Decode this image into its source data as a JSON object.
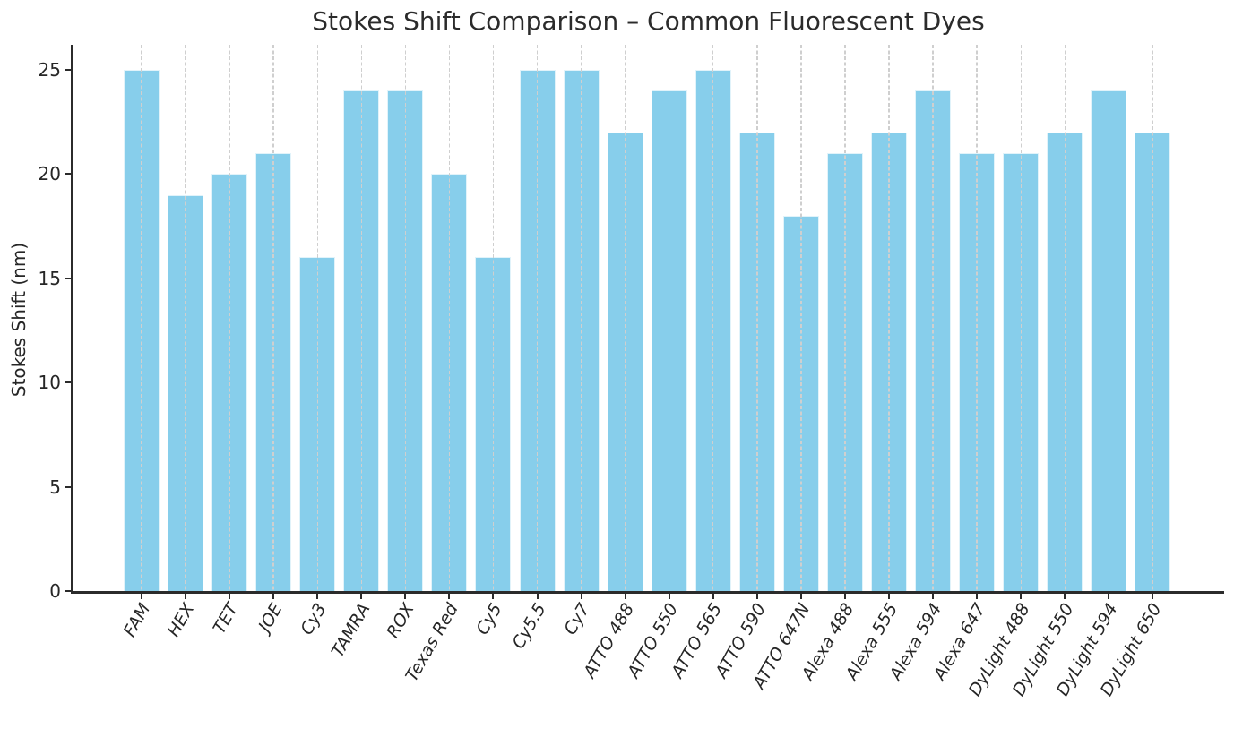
{
  "chart_data": {
    "type": "bar",
    "title": "Stokes Shift Comparison – Common Fluorescent Dyes",
    "xlabel": "",
    "ylabel": "Stokes Shift (nm)",
    "categories": [
      "FAM",
      "HEX",
      "TET",
      "JOE",
      "Cy3",
      "TAMRA",
      "ROX",
      "Texas Red",
      "Cy5",
      "Cy5.5",
      "Cy7",
      "ATTO 488",
      "ATTO 550",
      "ATTO 565",
      "ATTO 590",
      "ATTO 647N",
      "Alexa 488",
      "Alexa 555",
      "Alexa 594",
      "Alexa 647",
      "DyLight 488",
      "DyLight 550",
      "DyLight 594",
      "DyLight 650"
    ],
    "values": [
      25,
      19,
      20,
      21,
      16,
      24,
      24,
      20,
      16,
      25,
      25,
      22,
      24,
      25,
      22,
      18,
      21,
      22,
      24,
      21,
      21,
      22,
      24,
      22
    ],
    "yticks": [
      0,
      5,
      10,
      15,
      20,
      25
    ],
    "ylim": [
      0,
      26.2
    ],
    "bar_color": "#87CEEB",
    "bar_edge_color": "#FFFFFF",
    "axis_color": "#2b2b2b",
    "grid": {
      "vertical": true,
      "style": "dashed",
      "color": "#CFCFCF"
    },
    "legend": false
  }
}
